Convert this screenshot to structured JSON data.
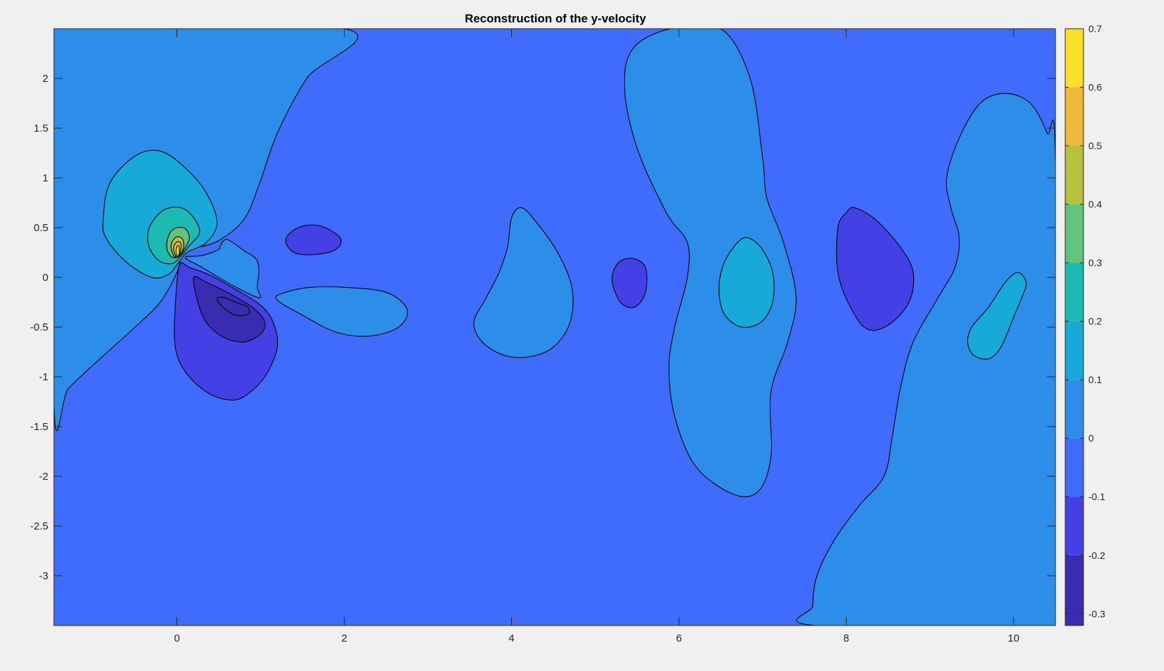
{
  "chart_data": {
    "type": "contour",
    "title": "Reconstruction of the y-velocity",
    "xlabel": "",
    "ylabel": "",
    "xlim": [
      -1.47,
      10.5
    ],
    "ylim": [
      -3.5,
      2.5
    ],
    "xticks": [
      0,
      2,
      4,
      6,
      8,
      10
    ],
    "yticks": [
      2,
      1.5,
      1,
      0.5,
      0,
      -0.5,
      -1,
      -1.5,
      -2,
      -2.5,
      -3
    ],
    "grid": false,
    "colorbar": {
      "limits": [
        -0.32,
        0.7
      ],
      "ticks": [
        0.7,
        0.6,
        0.5,
        0.4,
        0.3,
        0.2,
        0.1,
        0,
        -0.1,
        -0.2,
        -0.3
      ],
      "colormap": "parula"
    },
    "levels": [
      {
        "value": -0.3,
        "color": "#3a2cb0"
      },
      {
        "value": -0.2,
        "color": "#4340e6"
      },
      {
        "value": -0.1,
        "color": "#3f6cfd"
      },
      {
        "value": 0,
        "color": "#2d8ee9"
      },
      {
        "value": 0.1,
        "color": "#17a9d7"
      },
      {
        "value": 0.2,
        "color": "#1cbab0"
      },
      {
        "value": 0.3,
        "color": "#62c47c"
      },
      {
        "value": 0.4,
        "color": "#b5c13f"
      },
      {
        "value": 0.5,
        "color": "#efba3b"
      },
      {
        "value": 0.6,
        "color": "#f9e12a"
      }
    ],
    "regions": [
      {
        "level": 0,
        "points": [
          [
            -1.47,
            -1.3
          ],
          [
            -1.3,
            -1.12
          ],
          [
            -1.0,
            -0.88
          ],
          [
            -0.5,
            -0.5
          ],
          [
            -0.2,
            -0.25
          ],
          [
            0.0,
            0.05
          ],
          [
            0.05,
            0.22
          ],
          [
            0.1,
            0.26
          ],
          [
            0.25,
            0.3
          ],
          [
            0.5,
            0.37
          ],
          [
            0.8,
            0.58
          ],
          [
            0.99,
            0.95
          ],
          [
            1.2,
            1.45
          ],
          [
            1.55,
            2.0
          ],
          [
            2.0,
            2.5
          ],
          [
            -1.47,
            2.5
          ]
        ]
      },
      {
        "level": 0,
        "points": [
          [
            0.52,
            0.32
          ],
          [
            0.6,
            0.38
          ],
          [
            0.8,
            0.27
          ],
          [
            0.95,
            0.18
          ],
          [
            0.98,
            0.05
          ],
          [
            0.96,
            -0.1
          ],
          [
            1.0,
            -0.2
          ],
          [
            0.9,
            -0.18
          ],
          [
            0.6,
            -0.05
          ],
          [
            0.3,
            0.1
          ],
          [
            0.1,
            0.2
          ],
          [
            0.3,
            0.22
          ],
          [
            0.5,
            0.28
          ]
        ]
      },
      {
        "level": 0.1,
        "points": [
          [
            -0.88,
            0.6
          ],
          [
            -0.8,
            0.95
          ],
          [
            -0.5,
            1.22
          ],
          [
            -0.2,
            1.27
          ],
          [
            0.1,
            1.1
          ],
          [
            0.35,
            0.85
          ],
          [
            0.48,
            0.55
          ],
          [
            0.35,
            0.35
          ],
          [
            0.12,
            0.25
          ],
          [
            0.02,
            0.15
          ],
          [
            -0.1,
            0.03
          ],
          [
            -0.3,
            0.0
          ],
          [
            -0.6,
            0.15
          ],
          [
            -0.85,
            0.4
          ]
        ]
      },
      {
        "level": 0.2,
        "points": [
          [
            -0.35,
            0.42
          ],
          [
            -0.3,
            0.55
          ],
          [
            -0.15,
            0.68
          ],
          [
            0.05,
            0.7
          ],
          [
            0.2,
            0.6
          ],
          [
            0.27,
            0.45
          ],
          [
            0.15,
            0.32
          ],
          [
            0.05,
            0.22
          ],
          [
            -0.05,
            0.14
          ],
          [
            -0.2,
            0.16
          ],
          [
            -0.32,
            0.28
          ]
        ]
      },
      {
        "level": 0.3,
        "points": [
          [
            -0.12,
            0.35
          ],
          [
            -0.08,
            0.45
          ],
          [
            0.0,
            0.5
          ],
          [
            0.1,
            0.49
          ],
          [
            0.15,
            0.4
          ],
          [
            0.1,
            0.3
          ],
          [
            0.03,
            0.22
          ],
          [
            -0.05,
            0.2
          ],
          [
            -0.11,
            0.26
          ]
        ]
      },
      {
        "level": 0.4,
        "points": [
          [
            -0.07,
            0.3
          ],
          [
            -0.05,
            0.37
          ],
          [
            0.01,
            0.41
          ],
          [
            0.07,
            0.38
          ],
          [
            0.08,
            0.3
          ],
          [
            0.03,
            0.22
          ],
          [
            -0.03,
            0.21
          ]
        ]
      },
      {
        "level": 0.5,
        "points": [
          [
            -0.04,
            0.28
          ],
          [
            -0.02,
            0.34
          ],
          [
            0.02,
            0.36
          ],
          [
            0.05,
            0.33
          ],
          [
            0.04,
            0.26
          ],
          [
            0.02,
            0.21
          ],
          [
            -0.01,
            0.21
          ]
        ]
      },
      {
        "level": 0.6,
        "points": [
          [
            -0.01,
            0.27
          ],
          [
            0.0,
            0.31
          ],
          [
            0.02,
            0.32
          ],
          [
            0.03,
            0.28
          ],
          [
            0.02,
            0.22
          ],
          [
            0.0,
            0.22
          ]
        ]
      },
      {
        "level": -0.2,
        "points": [
          [
            0.03,
            0.12
          ],
          [
            -0.02,
            -0.3
          ],
          [
            -0.02,
            -0.7
          ],
          [
            0.1,
            -0.95
          ],
          [
            0.35,
            -1.15
          ],
          [
            0.6,
            -1.23
          ],
          [
            0.8,
            -1.2
          ],
          [
            1.05,
            -1.0
          ],
          [
            1.2,
            -0.7
          ],
          [
            1.15,
            -0.45
          ],
          [
            1.0,
            -0.28
          ],
          [
            0.7,
            -0.12
          ],
          [
            0.4,
            0.02
          ],
          [
            0.15,
            0.1
          ]
        ]
      },
      {
        "level": -0.3,
        "points": [
          [
            0.2,
            0.0
          ],
          [
            0.25,
            -0.25
          ],
          [
            0.35,
            -0.45
          ],
          [
            0.55,
            -0.6
          ],
          [
            0.8,
            -0.65
          ],
          [
            1.0,
            -0.57
          ],
          [
            1.05,
            -0.45
          ],
          [
            0.9,
            -0.3
          ],
          [
            0.6,
            -0.15
          ],
          [
            0.35,
            -0.05
          ]
        ]
      },
      {
        "level": -0.3,
        "points": [
          [
            0.48,
            -0.22
          ],
          [
            0.55,
            -0.3
          ],
          [
            0.7,
            -0.38
          ],
          [
            0.85,
            -0.37
          ],
          [
            0.85,
            -0.3
          ],
          [
            0.7,
            -0.25
          ],
          [
            0.55,
            -0.2
          ]
        ]
      },
      {
        "level": -0.2,
        "points": [
          [
            1.3,
            0.38
          ],
          [
            1.45,
            0.5
          ],
          [
            1.7,
            0.52
          ],
          [
            1.95,
            0.4
          ],
          [
            1.9,
            0.28
          ],
          [
            1.65,
            0.23
          ],
          [
            1.4,
            0.25
          ]
        ]
      },
      {
        "level": 0,
        "points": [
          [
            1.19,
            -0.22
          ],
          [
            1.3,
            -0.15
          ],
          [
            1.6,
            -0.1
          ],
          [
            2.0,
            -0.1
          ],
          [
            2.5,
            -0.15
          ],
          [
            2.75,
            -0.32
          ],
          [
            2.65,
            -0.5
          ],
          [
            2.3,
            -0.59
          ],
          [
            1.9,
            -0.55
          ],
          [
            1.5,
            -0.38
          ]
        ]
      },
      {
        "level": 0,
        "points": [
          [
            3.55,
            -0.45
          ],
          [
            3.7,
            -0.2
          ],
          [
            3.85,
            0.05
          ],
          [
            3.95,
            0.3
          ],
          [
            4.0,
            0.6
          ],
          [
            4.12,
            0.7
          ],
          [
            4.3,
            0.55
          ],
          [
            4.55,
            0.25
          ],
          [
            4.72,
            -0.1
          ],
          [
            4.7,
            -0.45
          ],
          [
            4.5,
            -0.7
          ],
          [
            4.2,
            -0.8
          ],
          [
            3.9,
            -0.78
          ],
          [
            3.65,
            -0.65
          ]
        ]
      },
      {
        "level": -0.2,
        "points": [
          [
            5.2,
            -0.02
          ],
          [
            5.28,
            0.15
          ],
          [
            5.45,
            0.19
          ],
          [
            5.6,
            0.1
          ],
          [
            5.6,
            -0.15
          ],
          [
            5.47,
            -0.3
          ],
          [
            5.3,
            -0.25
          ]
        ]
      },
      {
        "level": 0,
        "points": [
          [
            5.9,
            2.5
          ],
          [
            6.5,
            2.5
          ],
          [
            6.85,
            2.0
          ],
          [
            7.0,
            1.2
          ],
          [
            7.05,
            0.8
          ],
          [
            7.25,
            0.35
          ],
          [
            7.4,
            -0.2
          ],
          [
            7.3,
            -0.65
          ],
          [
            7.1,
            -1.15
          ],
          [
            7.1,
            -1.8
          ],
          [
            6.95,
            -2.15
          ],
          [
            6.65,
            -2.18
          ],
          [
            6.2,
            -1.9
          ],
          [
            5.95,
            -1.4
          ],
          [
            5.88,
            -0.9
          ],
          [
            5.95,
            -0.5
          ],
          [
            6.1,
            0.0
          ],
          [
            6.1,
            0.35
          ],
          [
            5.85,
            0.65
          ],
          [
            5.5,
            1.3
          ],
          [
            5.35,
            1.9
          ],
          [
            5.45,
            2.3
          ]
        ]
      },
      {
        "level": 0.1,
        "points": [
          [
            6.48,
            -0.15
          ],
          [
            6.52,
            0.1
          ],
          [
            6.65,
            0.3
          ],
          [
            6.8,
            0.4
          ],
          [
            6.98,
            0.3
          ],
          [
            7.12,
            0.05
          ],
          [
            7.12,
            -0.25
          ],
          [
            6.98,
            -0.45
          ],
          [
            6.75,
            -0.5
          ],
          [
            6.55,
            -0.38
          ]
        ]
      },
      {
        "level": -0.2,
        "points": [
          [
            7.9,
            0.5
          ],
          [
            8.0,
            0.65
          ],
          [
            8.1,
            0.7
          ],
          [
            8.35,
            0.58
          ],
          [
            8.65,
            0.3
          ],
          [
            8.8,
            0.05
          ],
          [
            8.75,
            -0.25
          ],
          [
            8.5,
            -0.48
          ],
          [
            8.25,
            -0.52
          ],
          [
            8.05,
            -0.3
          ],
          [
            7.9,
            0.05
          ]
        ]
      },
      {
        "level": 0,
        "points": [
          [
            7.63,
            -3.5
          ],
          [
            10.5,
            -3.5
          ],
          [
            10.5,
            1.15
          ],
          [
            10.4,
            1.45
          ],
          [
            10.2,
            1.75
          ],
          [
            9.9,
            1.85
          ],
          [
            9.6,
            1.75
          ],
          [
            9.35,
            1.4
          ],
          [
            9.2,
            1.0
          ],
          [
            9.25,
            0.7
          ],
          [
            9.35,
            0.4
          ],
          [
            9.3,
            0.1
          ],
          [
            9.1,
            -0.2
          ],
          [
            8.8,
            -0.65
          ],
          [
            8.65,
            -1.1
          ],
          [
            8.55,
            -1.6
          ],
          [
            8.45,
            -2.0
          ],
          [
            8.15,
            -2.3
          ],
          [
            7.85,
            -2.65
          ],
          [
            7.65,
            -3.0
          ],
          [
            7.6,
            -3.3
          ]
        ]
      },
      {
        "level": 0.1,
        "points": [
          [
            9.45,
            -0.65
          ],
          [
            9.5,
            -0.5
          ],
          [
            9.7,
            -0.3
          ],
          [
            9.9,
            -0.05
          ],
          [
            10.05,
            0.05
          ],
          [
            10.15,
            -0.05
          ],
          [
            10.1,
            -0.2
          ],
          [
            10.0,
            -0.4
          ],
          [
            9.85,
            -0.7
          ],
          [
            9.7,
            -0.82
          ],
          [
            9.52,
            -0.78
          ]
        ]
      }
    ]
  }
}
